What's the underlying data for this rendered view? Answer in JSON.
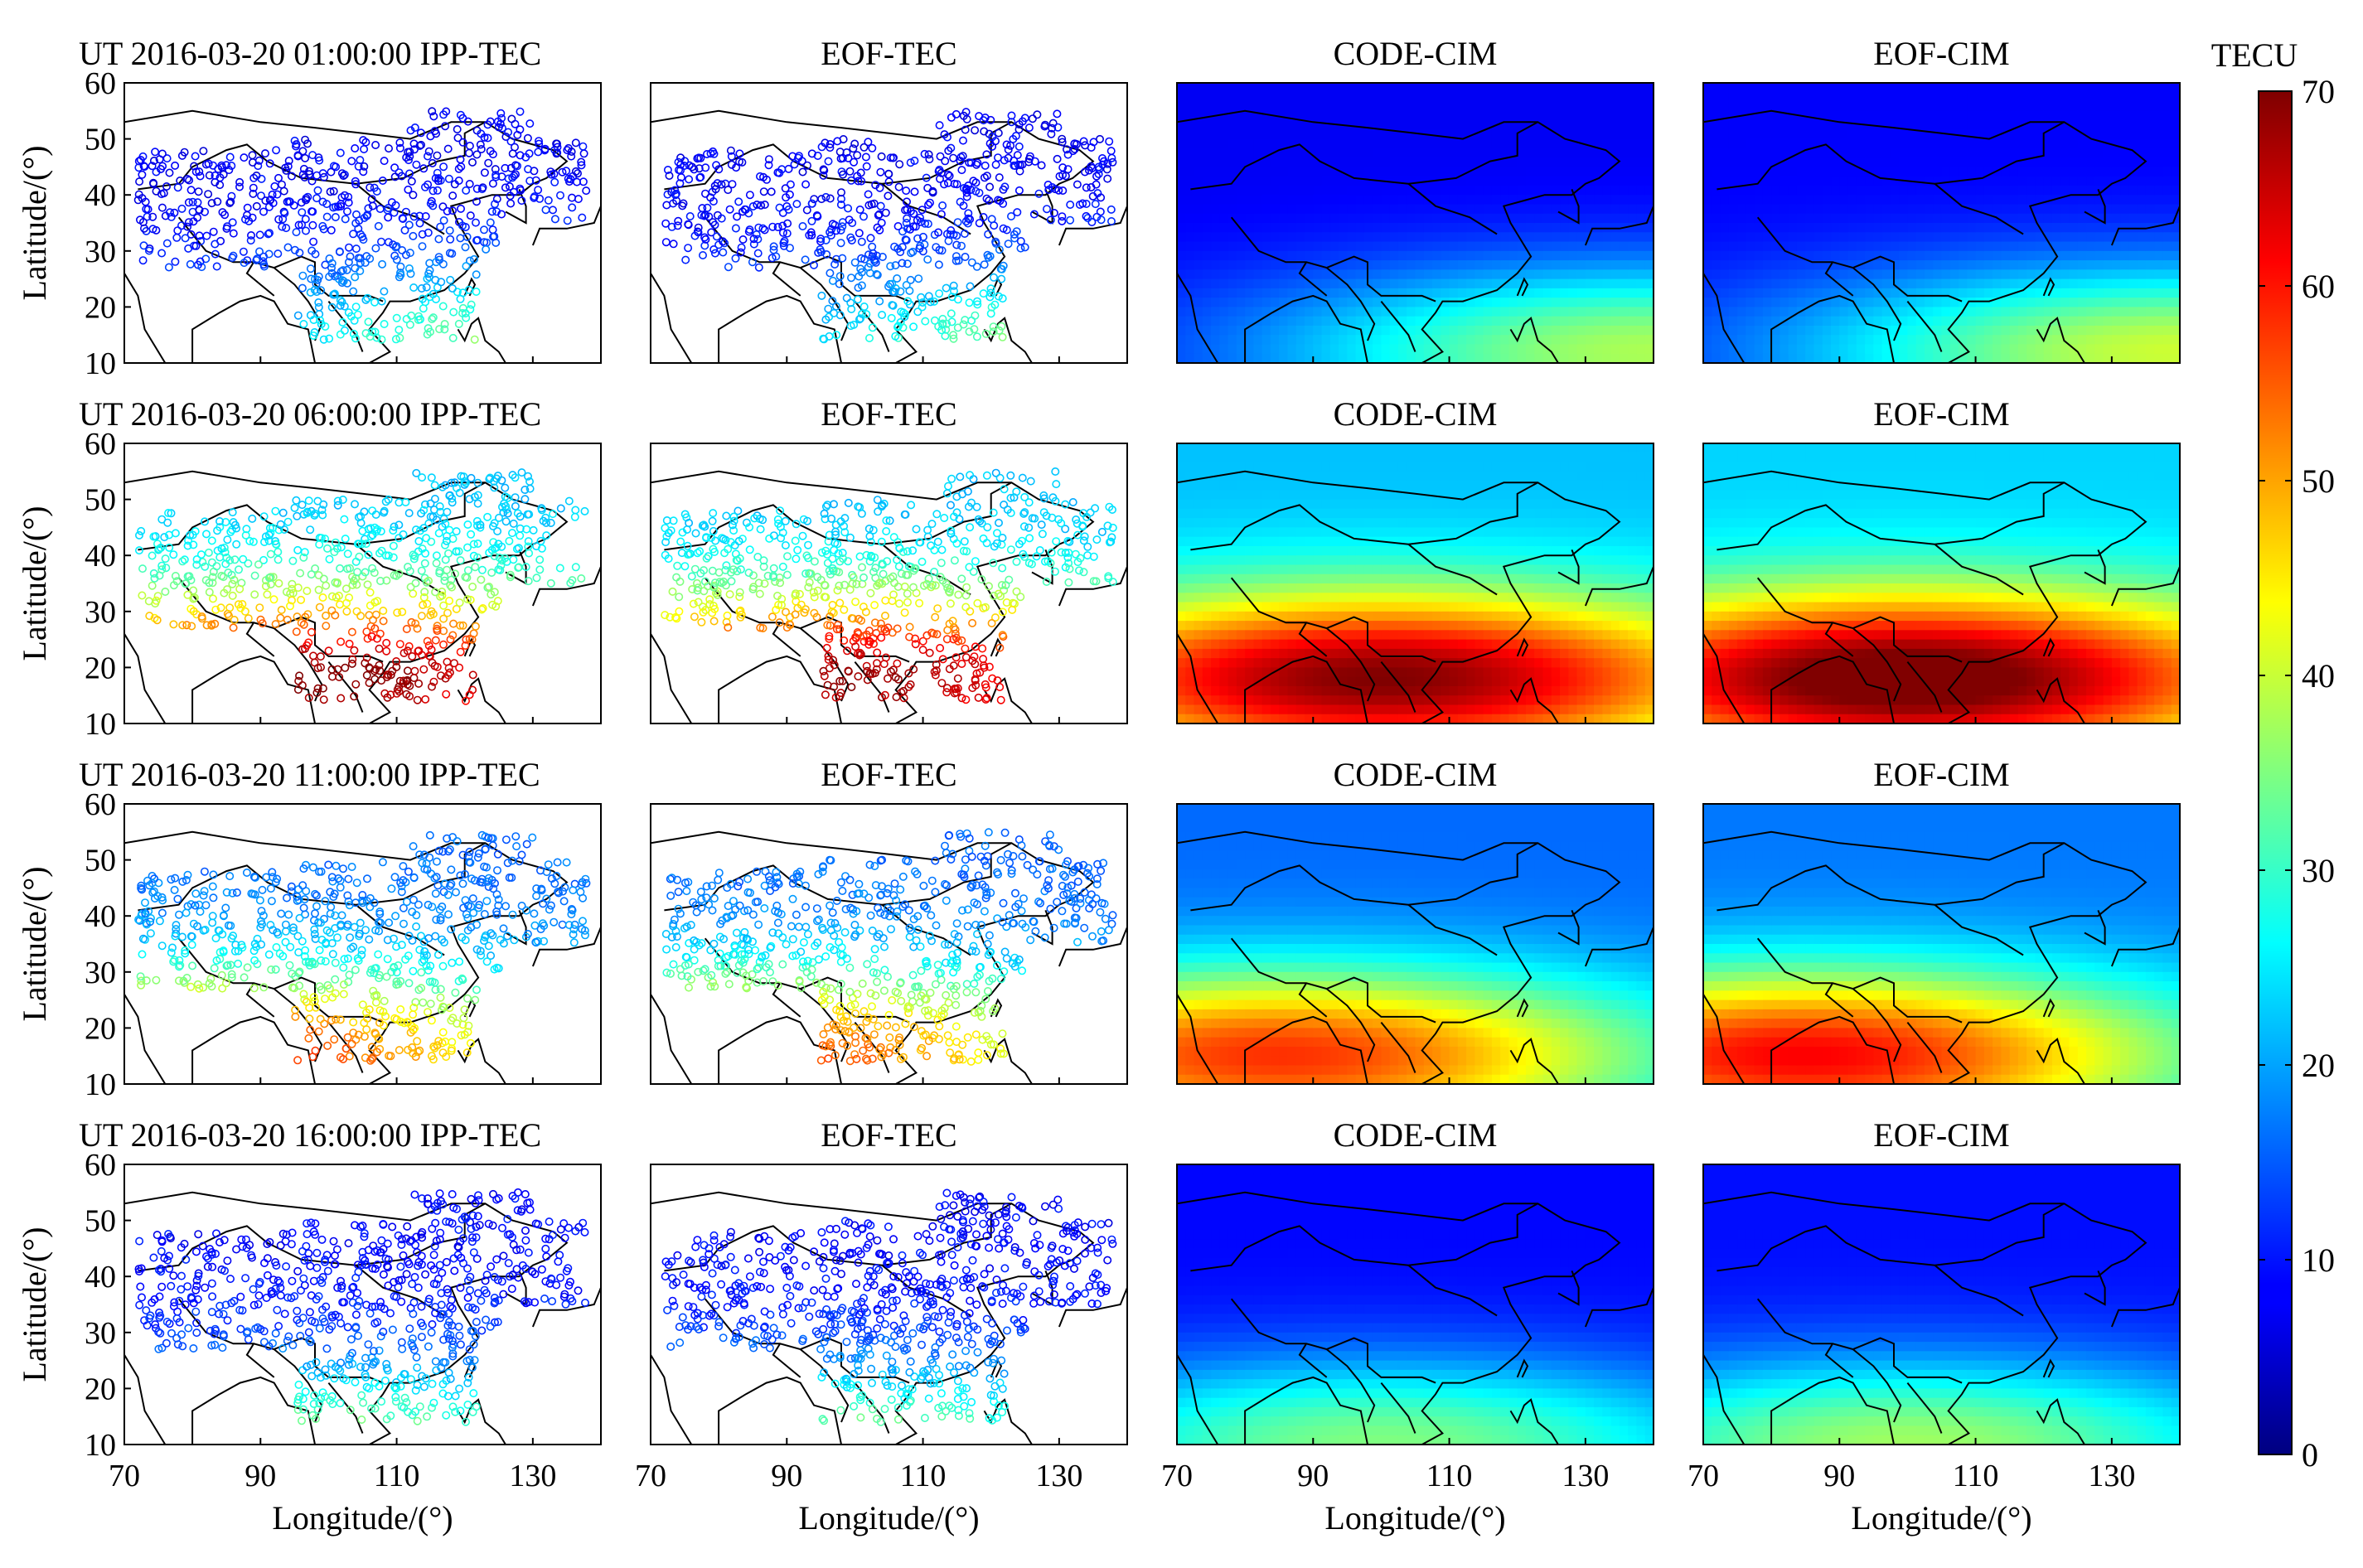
{
  "chart_data": {
    "type": "heatmap",
    "date_label": "UT 2016-03-20",
    "rows": [
      {
        "time": "01:00:00",
        "ipp_label": "IPP-TEC",
        "eof_tec_label": "EOF-TEC",
        "code_label": "CODE-CIM",
        "eof_cim_label": "EOF-CIM",
        "tec_pattern": {
          "peak_tecu": 38,
          "peak_lat": 12,
          "peak_lon": 140,
          "background_tecu": 8
        }
      },
      {
        "time": "06:00:00",
        "ipp_label": "IPP-TEC",
        "eof_tec_label": "EOF-TEC",
        "code_label": "CODE-CIM",
        "eof_cim_label": "EOF-CIM",
        "tec_pattern": {
          "peak_tecu": 70,
          "peak_lat": 18,
          "peak_lon": 100,
          "background_tecu": 22
        }
      },
      {
        "time": "11:00:00",
        "ipp_label": "IPP-TEC",
        "eof_tec_label": "EOF-TEC",
        "code_label": "CODE-CIM",
        "eof_cim_label": "EOF-CIM",
        "tec_pattern": {
          "peak_tecu": 58,
          "peak_lat": 15,
          "peak_lon": 85,
          "background_tecu": 16
        }
      },
      {
        "time": "16:00:00",
        "ipp_label": "IPP-TEC",
        "eof_tec_label": "EOF-TEC",
        "code_label": "CODE-CIM",
        "eof_cim_label": "EOF-CIM",
        "tec_pattern": {
          "peak_tecu": 35,
          "peak_lat": 10,
          "peak_lon": 100,
          "background_tecu": 9
        }
      }
    ],
    "x_axis": {
      "label": "Longitude/(°)",
      "range": [
        70,
        140
      ],
      "ticks": [
        70,
        90,
        110,
        130
      ]
    },
    "y_axis": {
      "label": "Latitude/(°)",
      "range": [
        10,
        60
      ],
      "ticks": [
        10,
        20,
        30,
        40,
        50,
        60
      ]
    },
    "colorbar": {
      "title": "TECU",
      "range": [
        0,
        70
      ],
      "ticks": [
        0,
        10,
        20,
        30,
        40,
        50,
        60,
        70
      ],
      "colormap": "jet"
    }
  }
}
